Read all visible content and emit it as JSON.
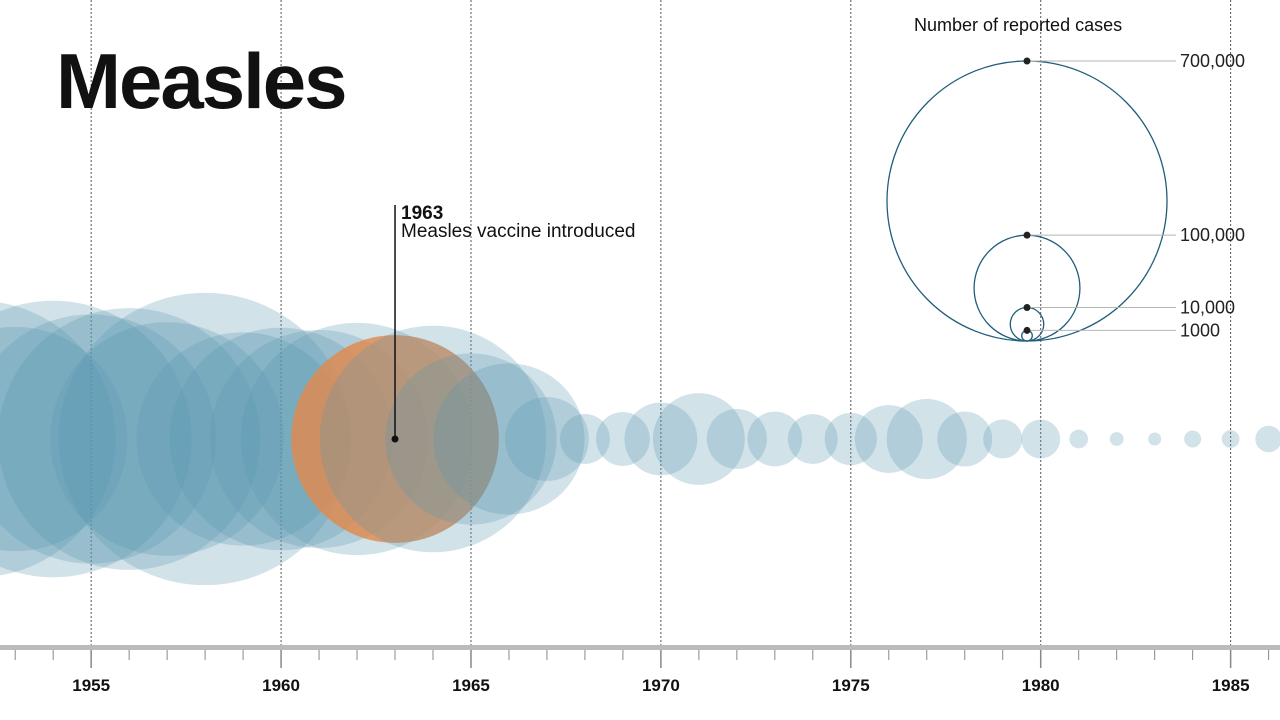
{
  "colors": {
    "bubble": "#5b98b0",
    "highlight": "#e08a4e",
    "legend_stroke": "#1f5e7a",
    "grid": "#555555",
    "axis": "#bbbbbb"
  },
  "chart_data": {
    "type": "bubble-timeline",
    "title": "Measles",
    "x_range": [
      1952.6,
      1986.3
    ],
    "x_ticks": [
      1955,
      1960,
      1965,
      1970,
      1975,
      1980,
      1985
    ],
    "points": [
      {
        "year": 1952,
        "cases": 683077
      },
      {
        "year": 1953,
        "cases": 449146
      },
      {
        "year": 1954,
        "cases": 682720
      },
      {
        "year": 1955,
        "cases": 555156
      },
      {
        "year": 1956,
        "cases": 611936
      },
      {
        "year": 1957,
        "cases": 486799
      },
      {
        "year": 1958,
        "cases": 763094
      },
      {
        "year": 1959,
        "cases": 406162
      },
      {
        "year": 1960,
        "cases": 441703
      },
      {
        "year": 1961,
        "cases": 423919
      },
      {
        "year": 1962,
        "cases": 481530
      },
      {
        "year": 1963,
        "cases": 385156
      },
      {
        "year": 1964,
        "cases": 458083
      },
      {
        "year": 1965,
        "cases": 261904
      },
      {
        "year": 1966,
        "cases": 204136
      },
      {
        "year": 1967,
        "cases": 62705
      },
      {
        "year": 1968,
        "cases": 22231
      },
      {
        "year": 1969,
        "cases": 25826
      },
      {
        "year": 1970,
        "cases": 47351
      },
      {
        "year": 1971,
        "cases": 75290
      },
      {
        "year": 1972,
        "cases": 32275
      },
      {
        "year": 1973,
        "cases": 26690
      },
      {
        "year": 1974,
        "cases": 22094
      },
      {
        "year": 1975,
        "cases": 24374
      },
      {
        "year": 1976,
        "cases": 41126
      },
      {
        "year": 1977,
        "cases": 57345
      },
      {
        "year": 1978,
        "cases": 26871
      },
      {
        "year": 1979,
        "cases": 13597
      },
      {
        "year": 1980,
        "cases": 13506
      },
      {
        "year": 1981,
        "cases": 3124
      },
      {
        "year": 1982,
        "cases": 1714
      },
      {
        "year": 1983,
        "cases": 1497
      },
      {
        "year": 1984,
        "cases": 2587
      },
      {
        "year": 1985,
        "cases": 2822
      },
      {
        "year": 1986,
        "cases": 6282
      }
    ],
    "highlight_year": 1963,
    "annotation": {
      "year_label": "1963",
      "text": "Measles vaccine introduced"
    },
    "legend": {
      "title": "Number of reported cases",
      "entries": [
        {
          "value": 700000,
          "label": "700,000"
        },
        {
          "value": 100000,
          "label": "100,000"
        },
        {
          "value": 10000,
          "label": "10,000"
        },
        {
          "value": 1000,
          "label": "1000"
        }
      ]
    }
  }
}
